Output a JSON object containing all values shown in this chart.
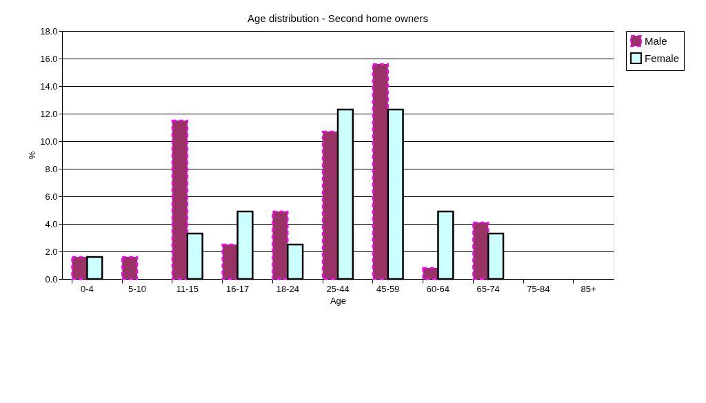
{
  "chart_data": {
    "type": "bar",
    "title": "Age distribution - Second home owners",
    "xlabel": "Age",
    "ylabel": "%",
    "categories": [
      "0-4",
      "5-10",
      "11-15",
      "16-17",
      "18-24",
      "25-44",
      "45-59",
      "60-64",
      "65-74",
      "75-84",
      "85+"
    ],
    "series": [
      {
        "name": "Male",
        "color": "#993366",
        "values": [
          1.6,
          1.6,
          11.5,
          2.5,
          4.9,
          10.7,
          15.6,
          0.8,
          4.1,
          null,
          null
        ]
      },
      {
        "name": "Female",
        "color": "#ccffff",
        "values": [
          1.6,
          null,
          3.3,
          4.9,
          2.5,
          12.3,
          12.3,
          4.9,
          3.3,
          null,
          null
        ]
      }
    ],
    "ylim": [
      0,
      18
    ],
    "yticks": [
      {
        "value": 0,
        "label": "0.0"
      },
      {
        "value": 2,
        "label": "2.0"
      },
      {
        "value": 4,
        "label": "4.0"
      },
      {
        "value": 6,
        "label": "6.0"
      },
      {
        "value": 8,
        "label": "8.0"
      },
      {
        "value": 10,
        "label": "10.0"
      },
      {
        "value": 12,
        "label": "12.0"
      },
      {
        "value": 14,
        "label": "14.0"
      },
      {
        "value": 16,
        "label": "16.0"
      },
      {
        "value": 18,
        "label": "18.0"
      }
    ],
    "grid": "y",
    "legend": "right"
  }
}
